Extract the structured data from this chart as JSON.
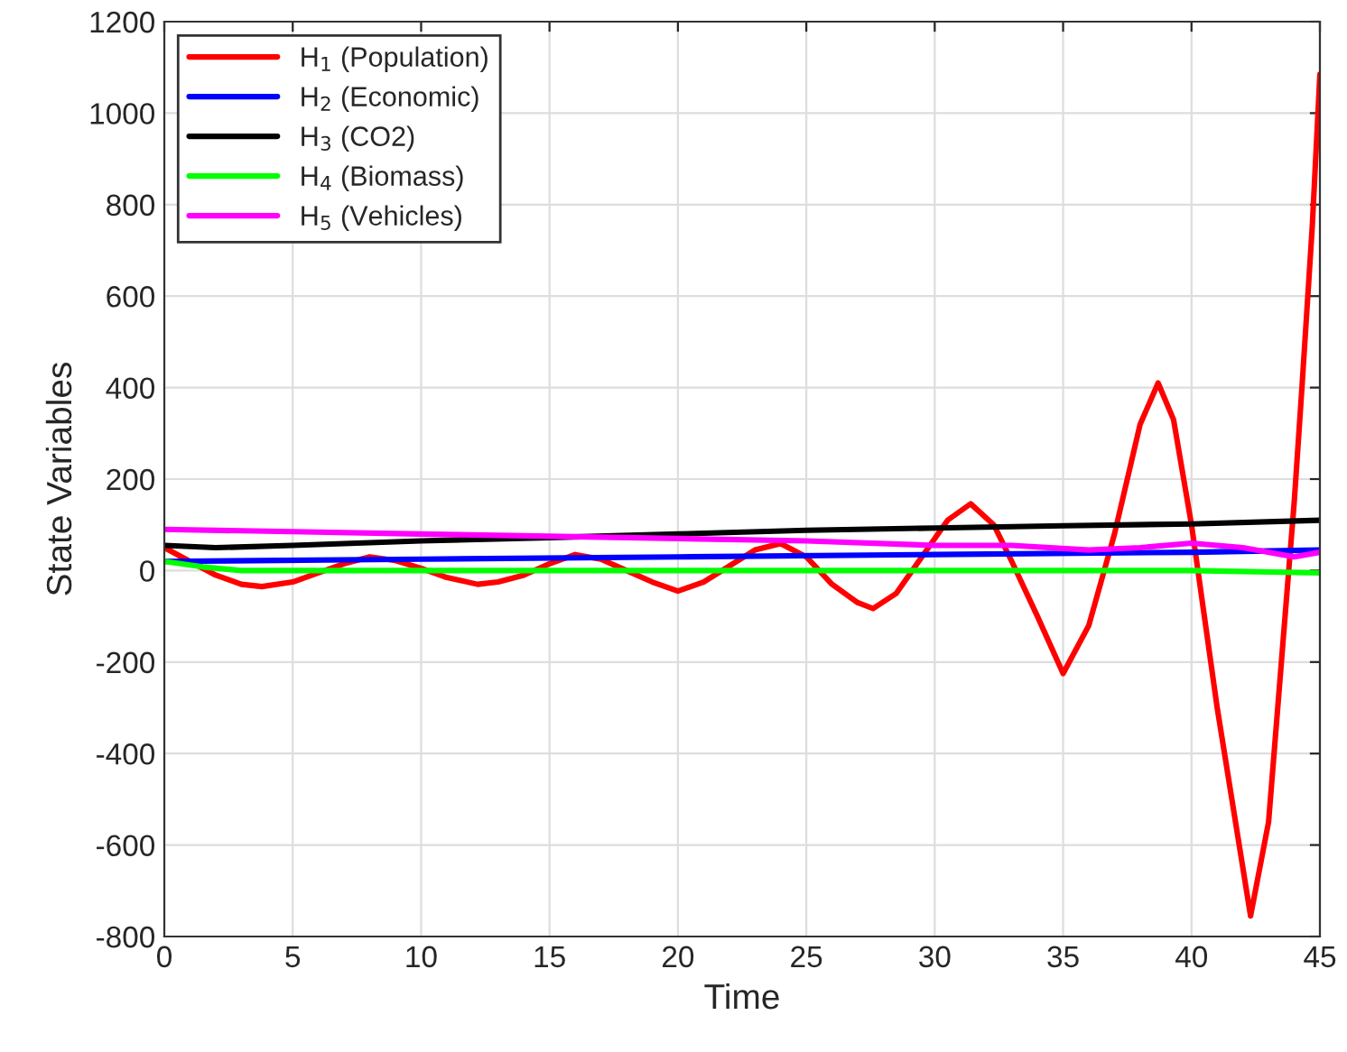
{
  "chart_data": {
    "type": "line",
    "xlabel": "Time",
    "ylabel": "State Variables",
    "xlim": [
      0,
      45
    ],
    "ylim": [
      -800,
      1200
    ],
    "xticks": [
      0,
      5,
      10,
      15,
      20,
      25,
      30,
      35,
      40,
      45
    ],
    "yticks": [
      -800,
      -600,
      -400,
      -200,
      0,
      200,
      400,
      600,
      800,
      1000,
      1200
    ],
    "grid": true,
    "legend": "top left",
    "line_style": "solid",
    "marker": "none",
    "series": [
      {
        "name": "H$_{1}$ (Population)",
        "color": "#ff0000",
        "x": [
          0,
          1,
          2,
          3,
          3.8,
          5,
          6,
          7,
          8,
          9,
          10,
          11,
          12.2,
          13,
          14,
          15,
          16,
          17,
          18,
          19,
          20,
          21,
          22,
          23,
          24,
          25,
          26,
          27,
          27.6,
          28.5,
          29.5,
          30.5,
          31.4,
          32.3,
          33,
          34,
          35,
          36,
          37,
          38,
          38.7,
          39.3,
          40,
          41,
          42.3,
          43,
          43.5,
          44,
          44.3,
          44.7,
          45
        ],
        "values": [
          50,
          20,
          -10,
          -30,
          -35,
          -25,
          -5,
          15,
          30,
          22,
          5,
          -15,
          -30,
          -25,
          -10,
          15,
          35,
          25,
          0,
          -25,
          -45,
          -25,
          10,
          45,
          59,
          30,
          -30,
          -70,
          -83,
          -50,
          30,
          110,
          146,
          100,
          20,
          -100,
          -225,
          -120,
          80,
          320,
          410,
          330,
          100,
          -300,
          -755,
          -550,
          -200,
          150,
          400,
          750,
          1085
        ]
      },
      {
        "name": "H$_{2}$ (Economic)",
        "color": "#0000ff",
        "x": [
          0,
          10,
          20,
          30,
          40,
          45
        ],
        "values": [
          20,
          25,
          30,
          35,
          40,
          45
        ]
      },
      {
        "name": "H$_{3}$ (CO2)",
        "color": "#000000",
        "x": [
          0,
          2,
          5,
          10,
          15,
          20,
          25,
          30,
          35,
          40,
          45
        ],
        "values": [
          55,
          50,
          55,
          65,
          72,
          80,
          88,
          93,
          98,
          102,
          110
        ]
      },
      {
        "name": "H$_{4}$ (Biomass)",
        "color": "#00ff00",
        "x": [
          0,
          1.5,
          3,
          10,
          20,
          30,
          40,
          45
        ],
        "values": [
          20,
          8,
          0,
          0,
          0,
          0,
          0,
          -5
        ]
      },
      {
        "name": "H$_{5}$ (Vehicles)",
        "color": "#ff00ff",
        "x": [
          0,
          5,
          10,
          15,
          20,
          25,
          30,
          33,
          36,
          38,
          40,
          42,
          44,
          45
        ],
        "values": [
          90,
          85,
          80,
          75,
          70,
          65,
          55,
          55,
          45,
          50,
          60,
          50,
          30,
          40
        ]
      }
    ]
  }
}
